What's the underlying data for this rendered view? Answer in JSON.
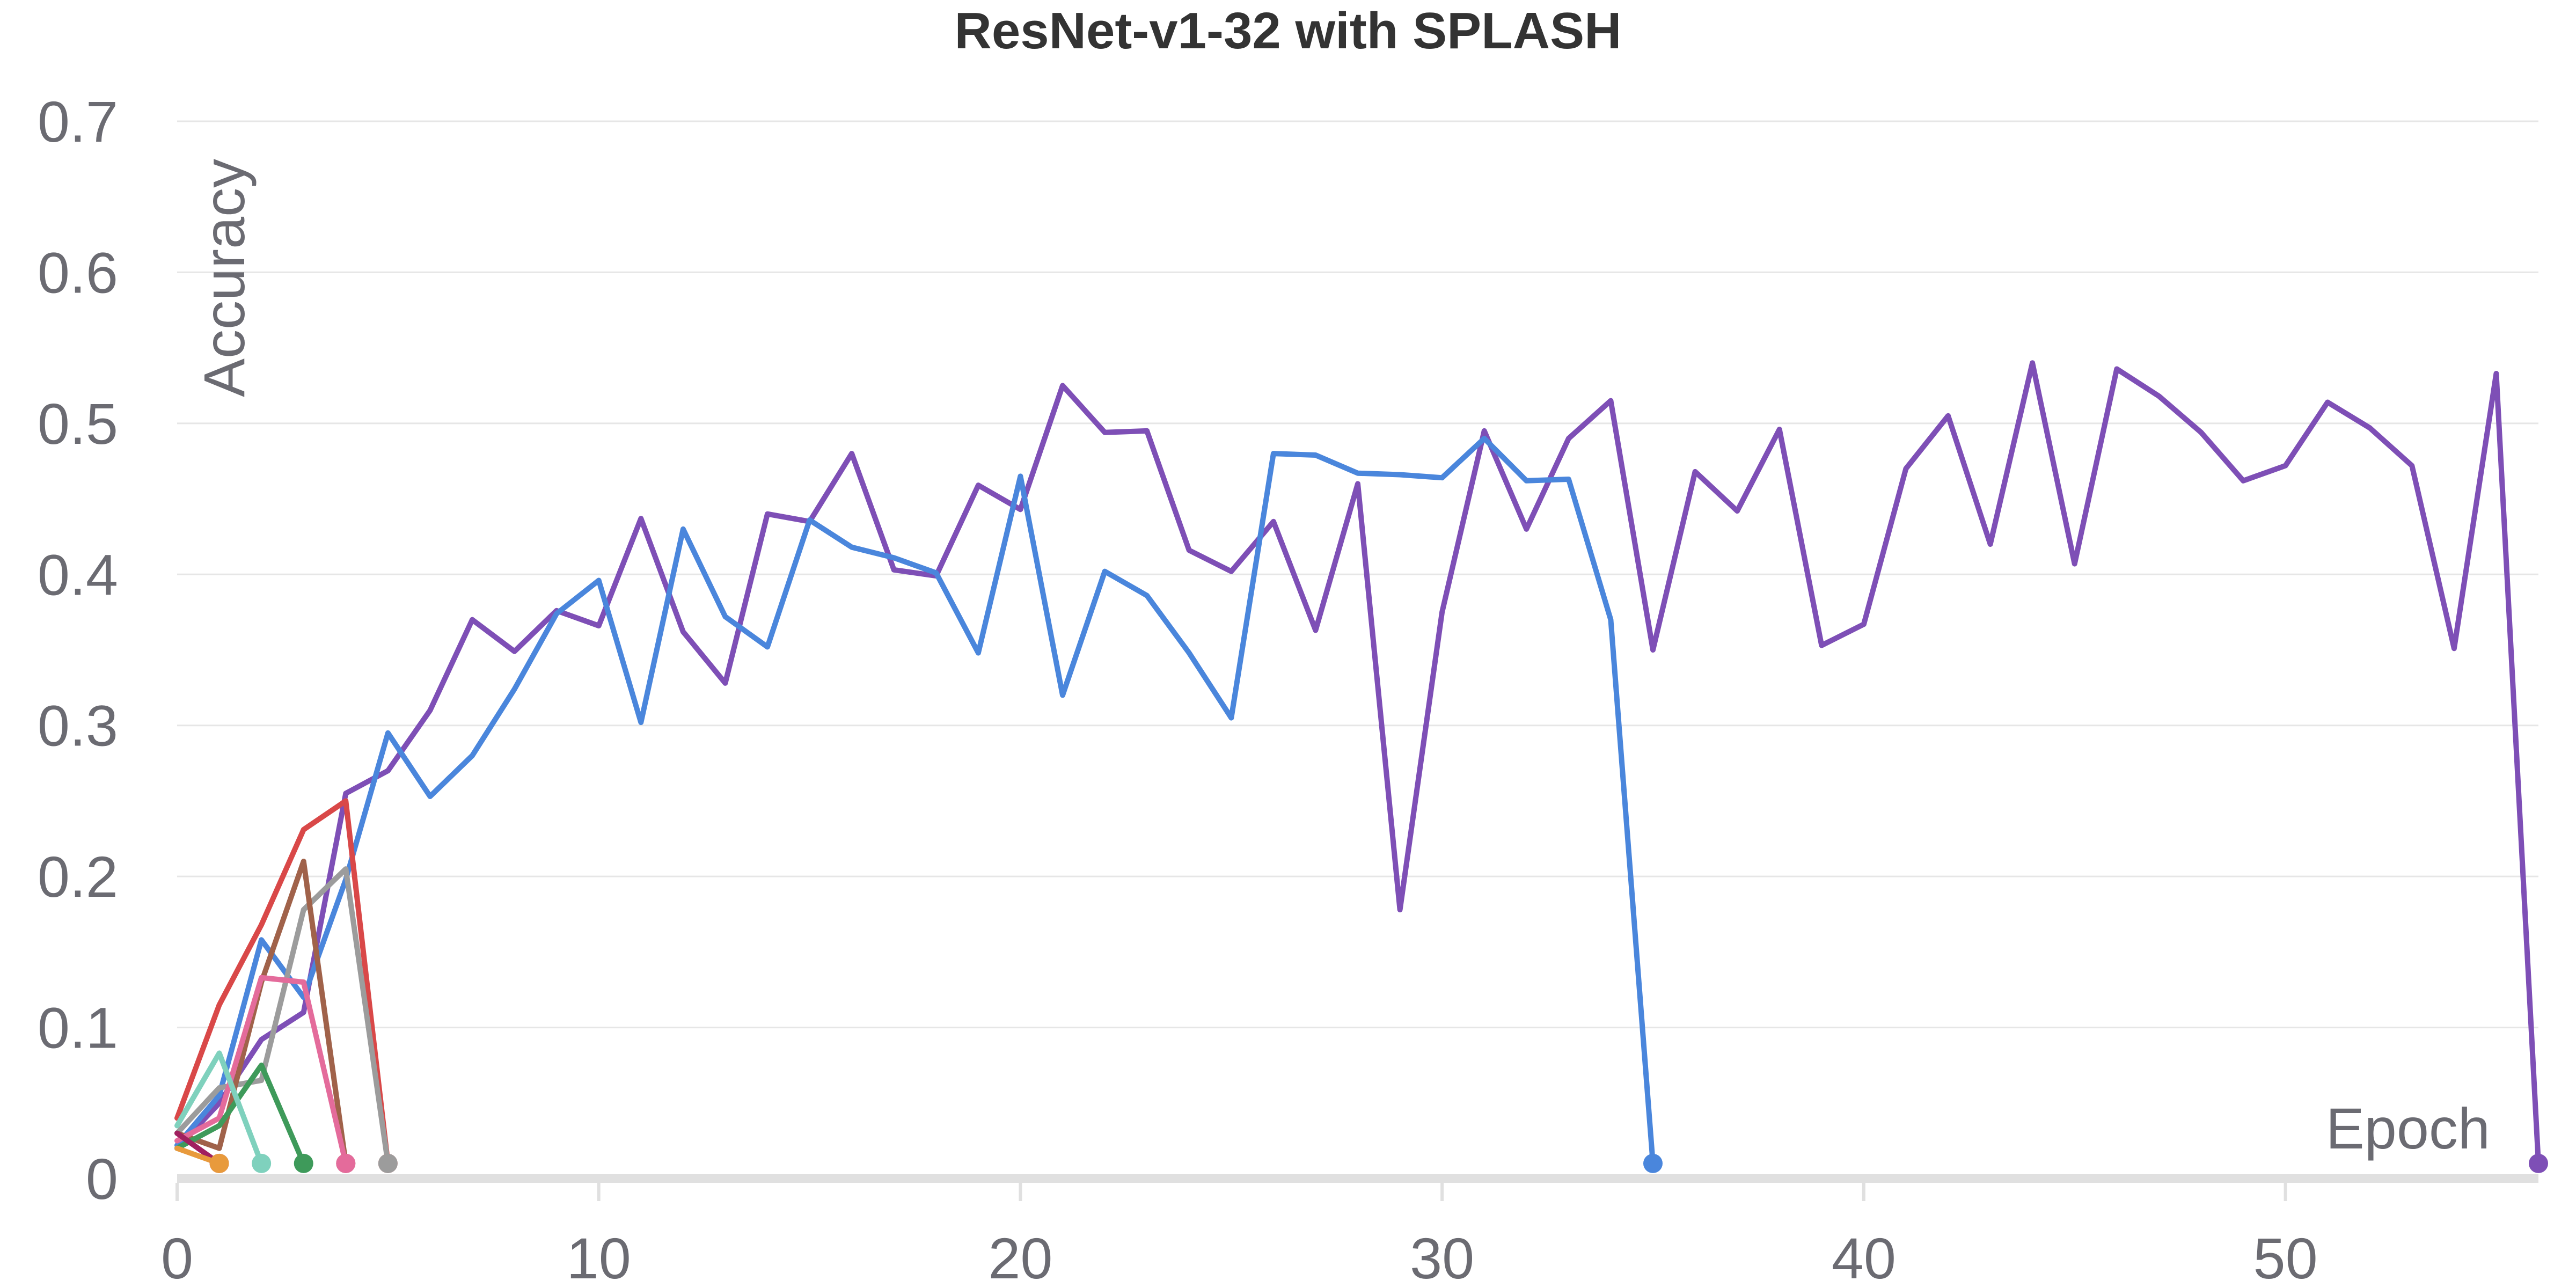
{
  "chart_data": {
    "type": "line",
    "title": "ResNet-v1-32 with SPLASH",
    "xlabel": "Epoch",
    "ylabel": "Accuracy",
    "xlim": [
      0,
      56
    ],
    "ylim": [
      0,
      0.7
    ],
    "x_ticks": [
      0,
      10,
      20,
      30,
      40,
      50
    ],
    "y_ticks": [
      0,
      0.1,
      0.2,
      0.3,
      0.4,
      0.5,
      0.6,
      0.7
    ],
    "x_tick_labels": [
      "0",
      "10",
      "20",
      "30",
      "40",
      "50"
    ],
    "y_tick_labels": [
      "0",
      "0.1",
      "0.2",
      "0.3",
      "0.4",
      "0.5",
      "0.6",
      "0.7"
    ],
    "grid": "horizontal",
    "legend": "none",
    "series": [
      {
        "color": "#7e4fb6",
        "x": [
          0,
          1,
          2,
          3,
          4,
          5,
          6,
          7,
          8,
          9,
          10,
          11,
          12,
          13,
          14,
          15,
          16,
          17,
          18,
          19,
          20,
          21,
          22,
          23,
          24,
          25,
          26,
          27,
          28,
          29,
          30,
          31,
          32,
          33,
          34,
          35,
          36,
          37,
          38,
          39,
          40,
          41,
          42,
          43,
          44,
          45,
          46,
          47,
          48,
          49,
          50,
          51,
          52,
          53,
          54,
          55,
          56
        ],
        "y": [
          0.02,
          0.05,
          0.092,
          0.11,
          0.255,
          0.27,
          0.31,
          0.37,
          0.349,
          0.376,
          0.366,
          0.437,
          0.362,
          0.328,
          0.44,
          0.435,
          0.48,
          0.403,
          0.399,
          0.459,
          0.443,
          0.525,
          0.494,
          0.495,
          0.416,
          0.402,
          0.435,
          0.363,
          0.46,
          0.178,
          0.375,
          0.495,
          0.43,
          0.49,
          0.515,
          0.35,
          0.468,
          0.442,
          0.496,
          0.353,
          0.367,
          0.47,
          0.505,
          0.42,
          0.54,
          0.407,
          0.536,
          0.518,
          0.494,
          0.462,
          0.472,
          0.514,
          0.497,
          0.472,
          0.351,
          0.533,
          0.01
        ]
      },
      {
        "color": "#4a86dc",
        "x": [
          0,
          1,
          2,
          3,
          4,
          5,
          6,
          7,
          8,
          9,
          10,
          11,
          12,
          13,
          14,
          15,
          16,
          17,
          18,
          19,
          20,
          21,
          22,
          23,
          24,
          25,
          26,
          27,
          28,
          29,
          30,
          31,
          32,
          33,
          34,
          35
        ],
        "y": [
          0.022,
          0.055,
          0.158,
          0.12,
          0.198,
          0.295,
          0.253,
          0.28,
          0.324,
          0.374,
          0.396,
          0.302,
          0.43,
          0.372,
          0.352,
          0.436,
          0.418,
          0.411,
          0.401,
          0.348,
          0.465,
          0.32,
          0.402,
          0.386,
          0.348,
          0.305,
          0.48,
          0.479,
          0.467,
          0.466,
          0.464,
          0.49,
          0.462,
          0.463,
          0.37,
          0.01
        ]
      },
      {
        "color": "#d94848",
        "x": [
          0,
          1,
          2,
          3,
          4,
          5
        ],
        "y": [
          0.04,
          0.115,
          0.168,
          0.231,
          0.25,
          0.01
        ]
      },
      {
        "color": "#9c9c9c",
        "x": [
          0,
          1,
          2,
          3,
          4,
          5
        ],
        "y": [
          0.03,
          0.06,
          0.065,
          0.178,
          0.205,
          0.01
        ]
      },
      {
        "color": "#a0624a",
        "x": [
          0,
          1,
          2,
          3,
          4
        ],
        "y": [
          0.03,
          0.02,
          0.13,
          0.21,
          0.01
        ]
      },
      {
        "color": "#e46b9b",
        "x": [
          0,
          1,
          2,
          3,
          4
        ],
        "y": [
          0.025,
          0.04,
          0.133,
          0.13,
          0.01
        ]
      },
      {
        "color": "#3e9a5a",
        "x": [
          0,
          1,
          2,
          3
        ],
        "y": [
          0.02,
          0.035,
          0.075,
          0.01
        ]
      },
      {
        "color": "#7fd1bd",
        "x": [
          0,
          1,
          2
        ],
        "y": [
          0.035,
          0.083,
          0.01
        ]
      },
      {
        "color": "#a0205f",
        "x": [
          0,
          1
        ],
        "y": [
          0.03,
          0.01
        ]
      },
      {
        "color": "#e89a3c",
        "x": [
          0,
          1
        ],
        "y": [
          0.02,
          0.01
        ]
      }
    ]
  }
}
